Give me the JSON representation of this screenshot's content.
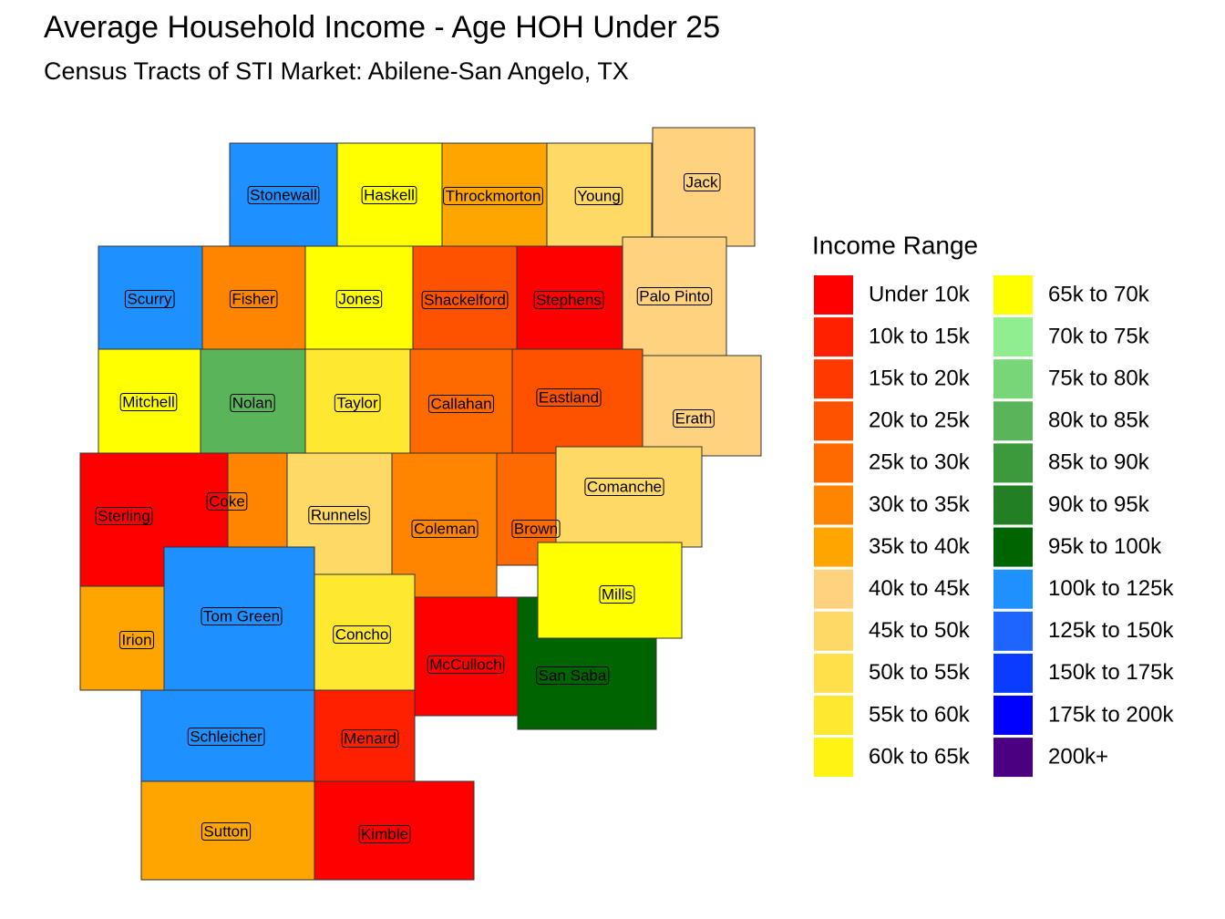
{
  "title": "Average Household Income - Age HOH Under 25",
  "subtitle": "Census Tracts of STI Market: Abilene-San Angelo, TX",
  "legend": {
    "title": "Income Range",
    "entries": [
      {
        "label": "Under 10k",
        "color": "#ff0000"
      },
      {
        "label": "10k to 15k",
        "color": "#ff2000"
      },
      {
        "label": "15k to 20k",
        "color": "#ff3a00"
      },
      {
        "label": "20k to 25k",
        "color": "#ff5200"
      },
      {
        "label": "25k to 30k",
        "color": "#ff6a00"
      },
      {
        "label": "30k to 35k",
        "color": "#ff8500"
      },
      {
        "label": "35k to 40k",
        "color": "#ffa500"
      },
      {
        "label": "40k to 45k",
        "color": "#ffd27f"
      },
      {
        "label": "45k to 50k",
        "color": "#ffd966"
      },
      {
        "label": "50k to 55k",
        "color": "#ffe04a"
      },
      {
        "label": "55k to 60k",
        "color": "#ffe830"
      },
      {
        "label": "60k to 65k",
        "color": "#fff314"
      },
      {
        "label": "65k to 70k",
        "color": "#ffff00"
      },
      {
        "label": "70k to 75k",
        "color": "#90ee90"
      },
      {
        "label": "75k to 80k",
        "color": "#78d678"
      },
      {
        "label": "80k to 85k",
        "color": "#5ab45a"
      },
      {
        "label": "85k to 90k",
        "color": "#3c9a3c"
      },
      {
        "label": "90k to 95k",
        "color": "#237f23"
      },
      {
        "label": "95k to 100k",
        "color": "#006400"
      },
      {
        "label": "100k to 125k",
        "color": "#1e90ff"
      },
      {
        "label": "125k to 150k",
        "color": "#1e64ff"
      },
      {
        "label": "150k to 175k",
        "color": "#0a3cff"
      },
      {
        "label": "175k to 200k",
        "color": "#0000ff"
      },
      {
        "label": "200k+",
        "color": "#4b0082"
      }
    ]
  },
  "counties": [
    "Stonewall",
    "Haskell",
    "Throckmorton",
    "Young",
    "Jack",
    "Scurry",
    "Fisher",
    "Jones",
    "Shackelford",
    "Stephens",
    "Palo Pinto",
    "Mitchell",
    "Nolan",
    "Taylor",
    "Callahan",
    "Eastland",
    "Erath",
    "Sterling",
    "Coke",
    "Runnels",
    "Coleman",
    "Brown",
    "Comanche",
    "Irion",
    "Tom Green",
    "Concho",
    "McCulloch",
    "San Saba",
    "Mills",
    "Schleicher",
    "Menard",
    "Sutton",
    "Kimble"
  ]
}
